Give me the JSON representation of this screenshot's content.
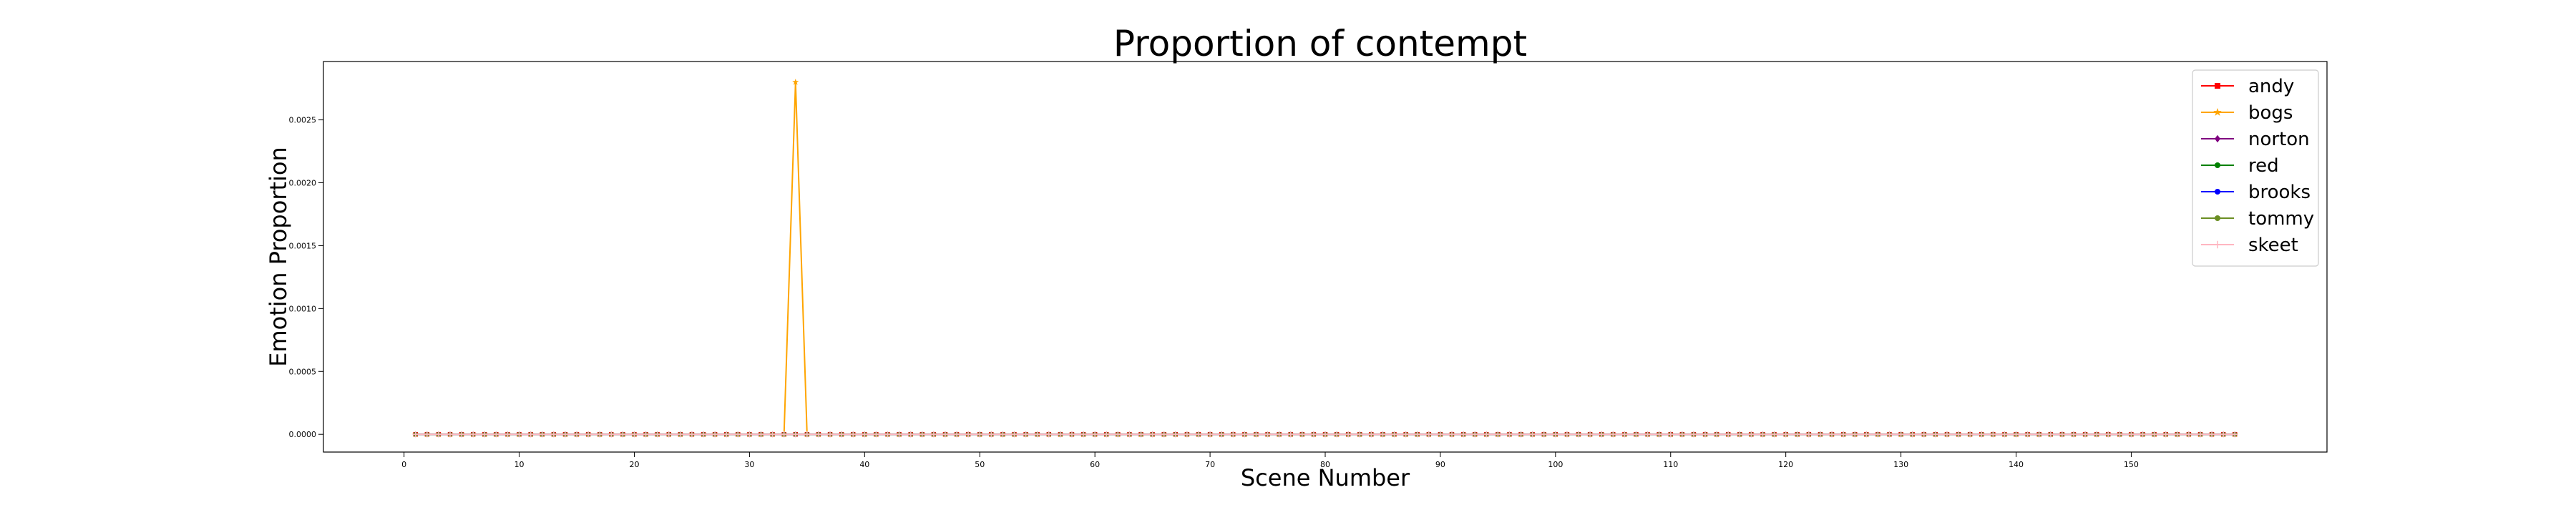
{
  "chart_data": {
    "type": "line",
    "title": "Proportion of contempt",
    "xlabel": "Scene Number",
    "ylabel": "Emotion Proportion",
    "xlim": [
      -7,
      167
    ],
    "ylim": [
      -0.000141,
      0.002964
    ],
    "x_ticks": [
      0,
      10,
      20,
      30,
      40,
      50,
      60,
      70,
      80,
      90,
      100,
      110,
      120,
      130,
      140,
      150
    ],
    "x_tick_labels": [
      "0",
      "10",
      "20",
      "30",
      "40",
      "50",
      "60",
      "70",
      "80",
      "90",
      "100",
      "110",
      "120",
      "130",
      "140",
      "150"
    ],
    "y_ticks": [
      0,
      0.0005,
      0.001,
      0.0015,
      0.002,
      0.0025
    ],
    "y_tick_labels": [
      "0.0000",
      "0.0005",
      "0.0010",
      "0.0015",
      "0.0020",
      "0.0025"
    ],
    "x_range": [
      1,
      159
    ],
    "grid": false,
    "legend_position": "top-right",
    "series": [
      {
        "name": "andy",
        "color": "#ff0000",
        "marker": "square",
        "default": 0,
        "points": []
      },
      {
        "name": "bogs",
        "color": "#ffa500",
        "marker": "star",
        "default": 0,
        "points": [
          [
            34,
            0.0028
          ]
        ]
      },
      {
        "name": "norton",
        "color": "#800080",
        "marker": "diamond",
        "default": 0,
        "points": []
      },
      {
        "name": "red",
        "color": "#008000",
        "marker": "circle",
        "default": 0,
        "points": []
      },
      {
        "name": "brooks",
        "color": "#0000ff",
        "marker": "circle",
        "default": 0,
        "points": []
      },
      {
        "name": "tommy",
        "color": "#6b8e23",
        "marker": "circle",
        "default": 0,
        "points": []
      },
      {
        "name": "skeet",
        "color": "#ffb6c1",
        "marker": "plus",
        "default": 0,
        "points": []
      }
    ]
  }
}
